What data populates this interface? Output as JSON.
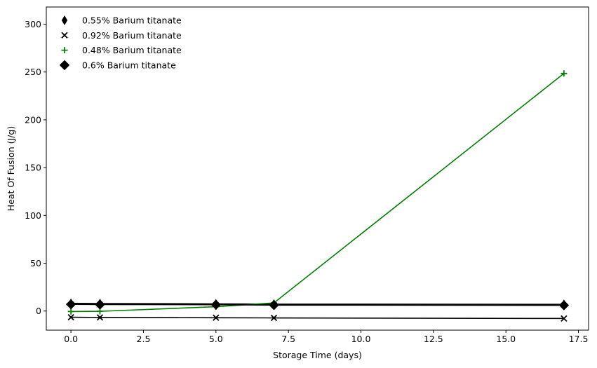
{
  "chart_data": {
    "type": "line",
    "title": "",
    "xlabel": "Storage Time (days)",
    "ylabel": "Heat Of Fusion (J/g)",
    "xlim": [
      -0.85,
      17.85
    ],
    "ylim": [
      -20,
      318
    ],
    "xticks": [
      0.0,
      2.5,
      5.0,
      7.5,
      10.0,
      12.5,
      15.0,
      17.5
    ],
    "xtick_labels": [
      "0.0",
      "2.5",
      "5.0",
      "7.5",
      "10.0",
      "12.5",
      "15.0",
      "17.5"
    ],
    "yticks": [
      0,
      50,
      100,
      150,
      200,
      250,
      300
    ],
    "ytick_labels": [
      "0",
      "50",
      "100",
      "150",
      "200",
      "250",
      "300"
    ],
    "grid": false,
    "legend_position": "top-left",
    "x": [
      0,
      1,
      5,
      7,
      17
    ],
    "series": [
      {
        "name": "0.55% Barium titanate",
        "marker": "thin-diamond",
        "color": "#000000",
        "values": [
          8.0,
          7.8,
          7.5,
          7.2,
          7.0
        ]
      },
      {
        "name": "0.92% Barium titanate",
        "marker": "x",
        "color": "#000000",
        "values": [
          -6.5,
          -6.7,
          -7.0,
          -7.2,
          -7.8
        ]
      },
      {
        "name": "0.48% Barium titanate",
        "marker": "plus",
        "color": "#008000",
        "values": [
          -0.5,
          -0.3,
          4.5,
          8.5,
          248.5
        ]
      },
      {
        "name": "0.6% Barium titanate",
        "marker": "diamond",
        "color": "#000000",
        "values": [
          7.0,
          6.8,
          6.6,
          6.2,
          6.0
        ]
      }
    ]
  }
}
